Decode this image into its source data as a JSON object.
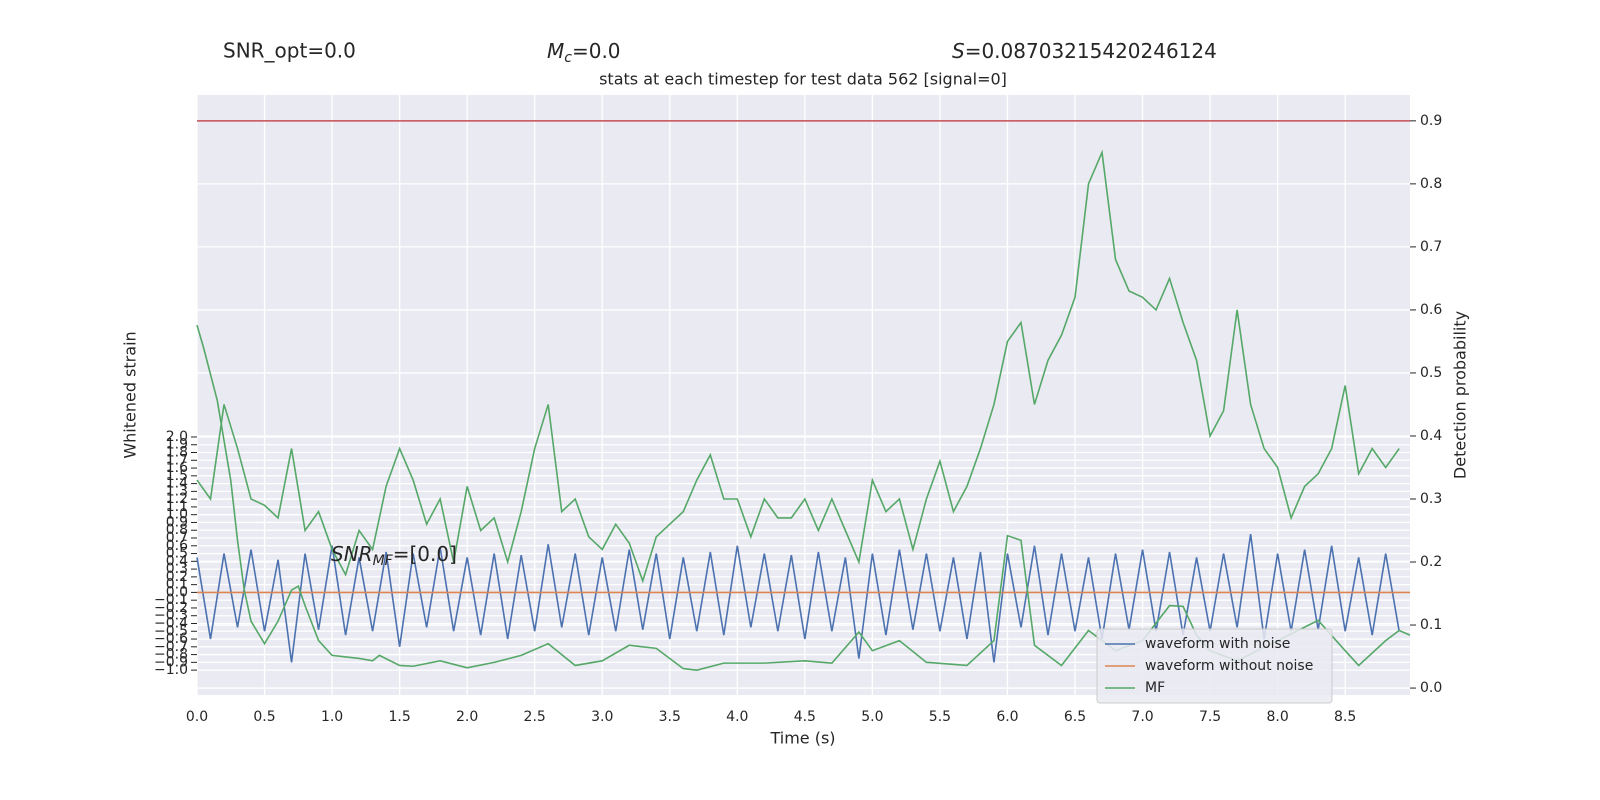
{
  "chart_data": {
    "type": "line",
    "title": "stats at each timestep for test data 562 [signal=0]",
    "header": {
      "snr_opt": "SNR_opt=0.0",
      "mc": {
        "symbol": "M",
        "subscript": "c",
        "text": "=0.0"
      },
      "s": {
        "symbol": "S",
        "text": "=0.08703215420246124"
      }
    },
    "annotation": {
      "symbol": "SNR",
      "subscript": "MF",
      "text": "=[0.0]"
    },
    "xlabel": "Time (s)",
    "ylabel": "Whitened strain",
    "y2label": "Detection probability",
    "xlim": [
      0,
      8.98
    ],
    "ylim": [
      -1.32,
      6.4
    ],
    "y2lim": [
      -0.011,
      0.941
    ],
    "xticks": [
      {
        "value": 0,
        "label": "0.0"
      },
      0.5,
      {
        "value": 1,
        "label": "1.0"
      },
      1.5,
      {
        "value": 2,
        "label": "2.0"
      },
      2.5,
      {
        "value": 3,
        "label": "3.0"
      },
      3.5,
      {
        "value": 4,
        "label": "4.0"
      },
      4.5,
      {
        "value": 5,
        "label": "5.0"
      },
      5.5,
      {
        "value": 6,
        "label": "6.0"
      },
      6.5,
      {
        "value": 7,
        "label": "7.0"
      },
      7.5,
      {
        "value": 8,
        "label": "8.0"
      },
      8.5
    ],
    "yticks": [
      {
        "value": -1,
        "label": "−1.0"
      },
      {
        "value": -0.9,
        "label": "−0.9"
      },
      {
        "value": -0.8,
        "label": "−0.8"
      },
      {
        "value": -0.7,
        "label": "−0.7"
      },
      {
        "value": -0.6,
        "label": "−0.6"
      },
      {
        "value": -0.5,
        "label": "−0.5"
      },
      {
        "value": -0.4,
        "label": "−0.4"
      },
      {
        "value": -0.3,
        "label": "−0.3"
      },
      {
        "value": -0.2,
        "label": "−0.2"
      },
      {
        "value": -0.1,
        "label": "−0.1"
      },
      {
        "value": 0,
        "label": "0.0"
      },
      0.1,
      0.2,
      0.3,
      0.4,
      0.5,
      0.6,
      0.7,
      0.8,
      0.9,
      {
        "value": 1,
        "label": "1.0"
      },
      1.1,
      1.2,
      1.3,
      1.4,
      1.5,
      1.6,
      1.7,
      1.8,
      1.9,
      {
        "value": 2,
        "label": "2.0"
      }
    ],
    "y2ticks": [
      {
        "value": 0,
        "label": "0.0"
      },
      0.1,
      0.2,
      0.3,
      0.4,
      0.5,
      0.6,
      0.7,
      0.8,
      0.9
    ],
    "grid": true,
    "legend": "lower right",
    "threshold": {
      "value": 0.9,
      "color": "#c44e52",
      "axis": "y2"
    },
    "series": [
      {
        "name": "waveform with noise",
        "color": "#4c72b0",
        "x": [
          0,
          0.1,
          0.2,
          0.3,
          0.4,
          0.5,
          0.6,
          0.7,
          0.8,
          0.9,
          1,
          1.1,
          1.2,
          1.3,
          1.4,
          1.5,
          1.6,
          1.7,
          1.8,
          1.9,
          2,
          2.1,
          2.2,
          2.3,
          2.4,
          2.5,
          2.6,
          2.7,
          2.8,
          2.9,
          3,
          3.1,
          3.2,
          3.3,
          3.4,
          3.5,
          3.6,
          3.7,
          3.8,
          3.9,
          4,
          4.1,
          4.2,
          4.3,
          4.4,
          4.5,
          4.6,
          4.7,
          4.8,
          4.9,
          5,
          5.1,
          5.2,
          5.3,
          5.4,
          5.5,
          5.6,
          5.7,
          5.8,
          5.9,
          6,
          6.1,
          6.2,
          6.3,
          6.4,
          6.5,
          6.6,
          6.7,
          6.8,
          6.9,
          7,
          7.1,
          7.2,
          7.3,
          7.4,
          7.5,
          7.6,
          7.7,
          7.8,
          7.9,
          8,
          8.1,
          8.2,
          8.3,
          8.4,
          8.5,
          8.6,
          8.7,
          8.8,
          8.9
        ],
        "values": [
          0.45,
          -0.6,
          0.5,
          -0.45,
          0.55,
          -0.5,
          0.42,
          -0.9,
          0.5,
          -0.48,
          0.6,
          -0.55,
          0.45,
          -0.5,
          0.52,
          -0.7,
          0.5,
          -0.45,
          0.58,
          -0.5,
          0.45,
          -0.55,
          0.5,
          -0.6,
          0.48,
          -0.5,
          0.62,
          -0.45,
          0.5,
          -0.55,
          0.45,
          -0.5,
          0.55,
          -0.48,
          0.5,
          -0.6,
          0.45,
          -0.5,
          0.52,
          -0.55,
          0.6,
          -0.45,
          0.5,
          -0.5,
          0.48,
          -0.6,
          0.52,
          -0.5,
          0.45,
          -0.85,
          0.5,
          -0.55,
          0.55,
          -0.48,
          0.5,
          -0.5,
          0.45,
          -0.6,
          0.52,
          -0.9,
          0.5,
          -0.45,
          0.6,
          -0.55,
          0.5,
          -0.5,
          0.45,
          -0.6,
          0.5,
          -0.48,
          0.55,
          -0.5,
          0.52,
          -0.55,
          0.45,
          -0.5,
          0.5,
          -0.45,
          0.75,
          -0.6,
          0.5,
          -0.5,
          0.55,
          -0.48,
          0.6,
          -0.5,
          0.45,
          -0.55,
          0.5,
          -0.5
        ]
      },
      {
        "name": "waveform without noise",
        "color": "#dd8452",
        "x": [
          0,
          8.98
        ],
        "values": [
          0,
          0
        ]
      },
      {
        "name": "MF",
        "color": "#55a868",
        "x": [
          0,
          0.05,
          0.15,
          0.25,
          0.3,
          0.35,
          0.4,
          0.5,
          0.6,
          0.7,
          0.75,
          0.8,
          0.9,
          1,
          1.2,
          1.3,
          1.35,
          1.5,
          1.6,
          1.8,
          2,
          2.2,
          2.4,
          2.6,
          2.8,
          3,
          3.2,
          3.4,
          3.6,
          3.7,
          3.9,
          4.2,
          4.5,
          4.7,
          4.9,
          5,
          5.2,
          5.4,
          5.7,
          5.9,
          6,
          6.1,
          6.2,
          6.4,
          6.6,
          6.8,
          7,
          7.2,
          7.3,
          7.4,
          7.5,
          7.7,
          8,
          8.3,
          8.5,
          8.6,
          8.8,
          8.9,
          8.98
        ],
        "values": [
          3.44,
          3.14,
          2.47,
          1.44,
          0.67,
          0.03,
          -0.37,
          -0.66,
          -0.37,
          0.03,
          0.08,
          -0.17,
          -0.62,
          -0.81,
          -0.85,
          -0.88,
          -0.81,
          -0.94,
          -0.95,
          -0.88,
          -0.97,
          -0.9,
          -0.81,
          -0.66,
          -0.94,
          -0.88,
          -0.68,
          -0.72,
          -0.98,
          -1,
          -0.91,
          -0.91,
          -0.88,
          -0.91,
          -0.51,
          -0.75,
          -0.62,
          -0.9,
          -0.94,
          -0.62,
          0.73,
          0.67,
          -0.68,
          -0.94,
          -0.49,
          -0.75,
          -0.62,
          -0.17,
          -0.18,
          -0.55,
          -0.75,
          -0.88,
          -0.62,
          -0.36,
          -0.75,
          -0.94,
          -0.62,
          -0.49,
          -0.55
        ]
      },
      {
        "color": "#55a868",
        "axis": "y2",
        "x": [
          0,
          0.1,
          0.2,
          0.3,
          0.4,
          0.5,
          0.6,
          0.7,
          0.8,
          0.9,
          1,
          1.1,
          1.2,
          1.3,
          1.4,
          1.5,
          1.6,
          1.7,
          1.8,
          1.9,
          2,
          2.1,
          2.2,
          2.3,
          2.4,
          2.5,
          2.6,
          2.7,
          2.8,
          2.9,
          3,
          3.1,
          3.2,
          3.3,
          3.4,
          3.5,
          3.6,
          3.7,
          3.8,
          3.9,
          4,
          4.1,
          4.2,
          4.3,
          4.4,
          4.5,
          4.6,
          4.7,
          4.8,
          4.9,
          5,
          5.1,
          5.2,
          5.3,
          5.4,
          5.5,
          5.6,
          5.7,
          5.8,
          5.9,
          6,
          6.1,
          6.2,
          6.3,
          6.4,
          6.5,
          6.6,
          6.7,
          6.8,
          6.9,
          7,
          7.1,
          7.2,
          7.3,
          7.4,
          7.5,
          7.6,
          7.7,
          7.8,
          7.9,
          8,
          8.1,
          8.2,
          8.3,
          8.4,
          8.5,
          8.6,
          8.7,
          8.8,
          8.9
        ],
        "values": [
          0.33,
          0.3,
          0.45,
          0.38,
          0.3,
          0.29,
          0.27,
          0.38,
          0.25,
          0.28,
          0.22,
          0.18,
          0.25,
          0.22,
          0.32,
          0.38,
          0.33,
          0.26,
          0.3,
          0.2,
          0.32,
          0.25,
          0.27,
          0.2,
          0.28,
          0.38,
          0.45,
          0.28,
          0.3,
          0.24,
          0.22,
          0.26,
          0.23,
          0.17,
          0.24,
          0.26,
          0.28,
          0.33,
          0.37,
          0.3,
          0.3,
          0.24,
          0.3,
          0.27,
          0.27,
          0.3,
          0.25,
          0.3,
          0.25,
          0.2,
          0.33,
          0.28,
          0.3,
          0.22,
          0.3,
          0.36,
          0.28,
          0.32,
          0.38,
          0.45,
          0.55,
          0.58,
          0.45,
          0.52,
          0.56,
          0.62,
          0.8,
          0.85,
          0.68,
          0.63,
          0.62,
          0.6,
          0.65,
          0.58,
          0.52,
          0.4,
          0.44,
          0.6,
          0.45,
          0.38,
          0.35,
          0.27,
          0.32,
          0.34,
          0.38,
          0.48,
          0.34,
          0.38,
          0.35,
          0.38
        ]
      }
    ]
  }
}
